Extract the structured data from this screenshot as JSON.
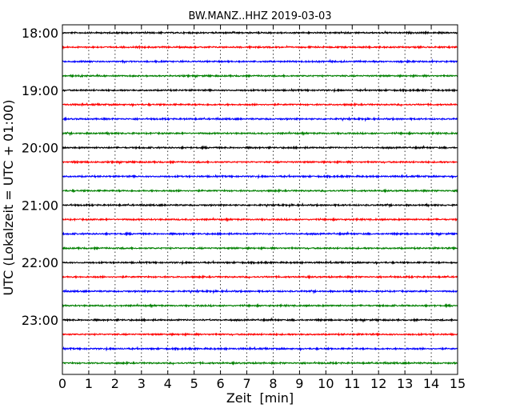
{
  "chart_data": {
    "type": "line",
    "title": "BW.MANZ..HHZ 2019-03-03",
    "xlabel": "Zeit  [min]",
    "ylabel": "UTC (Lokalzeit = UTC + 01:00)",
    "xlim": [
      0,
      15
    ],
    "xticks": [
      "0",
      "1",
      "2",
      "3",
      "4",
      "5",
      "6",
      "7",
      "8",
      "9",
      "10",
      "11",
      "12",
      "13",
      "14",
      "15"
    ],
    "yticks": [
      "18:00",
      "19:00",
      "20:00",
      "21:00",
      "22:00",
      "23:00"
    ],
    "grid": "vertical dotted at each minute",
    "rows_per_hour": 4,
    "row_start_times": [
      "18:00",
      "18:15",
      "18:30",
      "18:45",
      "19:00",
      "19:15",
      "19:30",
      "19:45",
      "20:00",
      "20:15",
      "20:30",
      "20:45",
      "21:00",
      "21:15",
      "21:30",
      "21:45",
      "22:00",
      "22:15",
      "22:30",
      "22:45",
      "23:00",
      "23:15",
      "23:30",
      "23:45"
    ],
    "colors": [
      "#000000",
      "#ff0000",
      "#0000ff",
      "#008000"
    ]
  }
}
